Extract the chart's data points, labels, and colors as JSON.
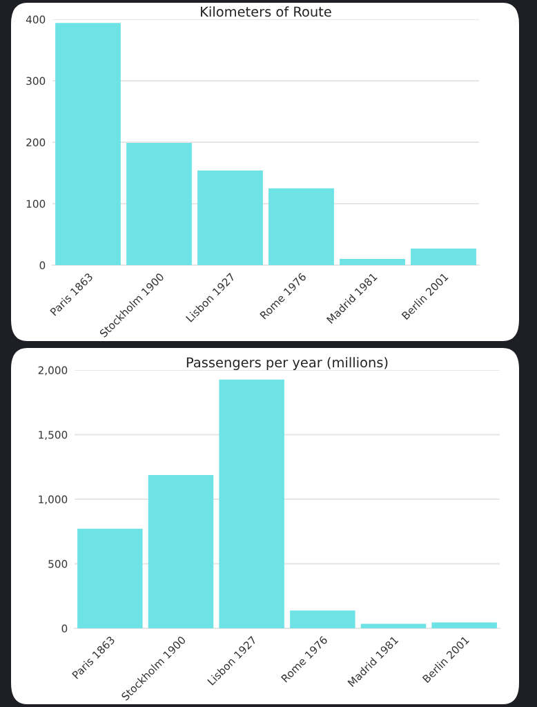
{
  "chart_data": [
    {
      "type": "bar",
      "title": "Kilometers of Route",
      "categories": [
        "Paris 1863",
        "Stockholm 1900",
        "Lisbon 1927",
        "Rome 1976",
        "Madrid 1981",
        "Berlin 2001"
      ],
      "values": [
        394,
        199,
        154,
        125,
        10,
        27
      ],
      "color": "#6de3e6",
      "ylim": [
        0,
        400
      ],
      "yticks": [
        0,
        100,
        200,
        300,
        400
      ],
      "grid": "y"
    },
    {
      "type": "bar",
      "title": "Passengers per year (millions)",
      "categories": [
        "Paris 1863",
        "Stockholm 1900",
        "Lisbon 1927",
        "Rome 1976",
        "Madrid 1981",
        "Berlin 2001"
      ],
      "values": [
        772,
        1187,
        1927,
        138,
        35,
        45
      ],
      "color": "#6de3e6",
      "ylim": [
        0,
        2000
      ],
      "yticks": [
        {
          "value": 0,
          "label": "0"
        },
        {
          "value": 500,
          "label": "500"
        },
        {
          "value": 1000,
          "label": "1,000"
        },
        {
          "value": 1500,
          "label": "1,500"
        },
        {
          "value": 2000,
          "label": "2,000"
        }
      ],
      "grid": "y"
    }
  ]
}
